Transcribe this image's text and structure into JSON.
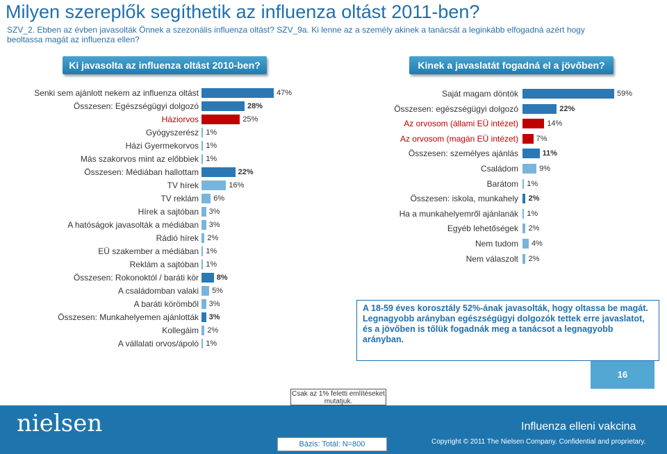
{
  "title": "Milyen szereplők segíthetik az influenza oltást 2011-ben?",
  "subtitle": "SZV_2.  Ebben az évben javasolták Önnek a szezonális influenza oltást? SZV_9a. Ki lenne az a személy akinek a tanácsát a leginkább elfogadná azért hogy beoltassa magát az influenza ellen?",
  "colors": {
    "bar_blue": "#2b78b4",
    "bar_light": "#78b5dc",
    "bar_red": "#c00000",
    "header": "#2a86bd",
    "footer": "#1e75ad"
  },
  "chart_data": [
    {
      "type": "bar",
      "orientation": "horizontal",
      "title": "Ki javasolta az influenza oltást 2010-ben?",
      "categories": [
        "Senki sem ajánlott nekem az influenza oltást",
        "Összesen: Egészségügyi dolgozó",
        "Háziorvos",
        "Gyógyszerész",
        "Házi Gyermekorvos",
        "Más szakorvos mint az előbbiek",
        "Összesen: Médiában hallottam",
        "TV hírek",
        "TV reklám",
        "Hírek a sajtóban",
        "A hatóságok javasolták a médiában",
        "Rádió hírek",
        "EÜ szakember a médiában",
        "Reklám a sajtóban",
        "Összesen: Rokonoktól / baráti kör",
        "A családomban valaki",
        "A baráti körömből",
        "Összesen: Munkahelyemen ajánlották",
        "Kollegáim",
        "A vállalati orvos/ápoló"
      ],
      "values": [
        47,
        28,
        25,
        1,
        1,
        1,
        22,
        16,
        6,
        3,
        3,
        2,
        1,
        1,
        8,
        5,
        3,
        3,
        2,
        1
      ],
      "labels": [
        "47%",
        "28%",
        "25%",
        "1%",
        "1%",
        "1%",
        "22%",
        "16%",
        "6%",
        "3%",
        "3%",
        "2%",
        "1%",
        "1%",
        "8%",
        "5%",
        "3%",
        "3%",
        "2%",
        "1%"
      ],
      "kinds": [
        "main",
        "total",
        "red",
        "sub",
        "sub",
        "sub",
        "total",
        "sub",
        "sub",
        "sub",
        "sub",
        "sub",
        "sub",
        "sub",
        "total",
        "sub",
        "sub",
        "total",
        "sub",
        "sub"
      ],
      "xlim": [
        0,
        50
      ]
    },
    {
      "type": "bar",
      "orientation": "horizontal",
      "title": "Kinek a javaslatát fogadná el a jövőben?",
      "categories": [
        "Saját magam döntök",
        "Összesen: egészségügyi dolgozó",
        "Az orvosom (állami EÜ intézet)",
        "Az orvosom (magán EÜ intézet)",
        "Összesen: személyes ajánlás",
        "Családom",
        "Barátom",
        "Összesen: iskola, munkahely",
        "Ha a munkahelyemről ajánlanák",
        "Egyéb lehetőségek",
        "Nem tudom",
        "Nem válaszolt"
      ],
      "values": [
        59,
        22,
        14,
        7,
        11,
        9,
        1,
        2,
        1,
        2,
        4,
        2
      ],
      "labels": [
        "59%",
        "22%",
        "14%",
        "7%",
        "11%",
        "9%",
        "1%",
        "2%",
        "1%",
        "2%",
        "4%",
        "2%"
      ],
      "kinds": [
        "main",
        "total",
        "red",
        "red",
        "total",
        "sub",
        "sub",
        "total",
        "sub",
        "sub",
        "sub",
        "sub"
      ],
      "xlim": [
        0,
        60
      ]
    }
  ],
  "summary": {
    "line1": "A 18-59 éves korosztály 52%-ának javasolták, hogy oltassa be magát.",
    "line2": "Legnagyobb arányban egészségügyi dolgozók tettek erre javaslatot, és a jövőben is tőlük fogadnák meg a tanácsot a legnagyobb arányban."
  },
  "page_number": "16",
  "note": "Csak az 1% feletti említéseket mutatjuk.",
  "base": "Bázis: Totál: N=800",
  "logo": "nielsen",
  "footer_title": "Influenza elleni vakcina",
  "copyright": "Copyright © 2011 The Nielsen Company. Confidential and proprietary."
}
